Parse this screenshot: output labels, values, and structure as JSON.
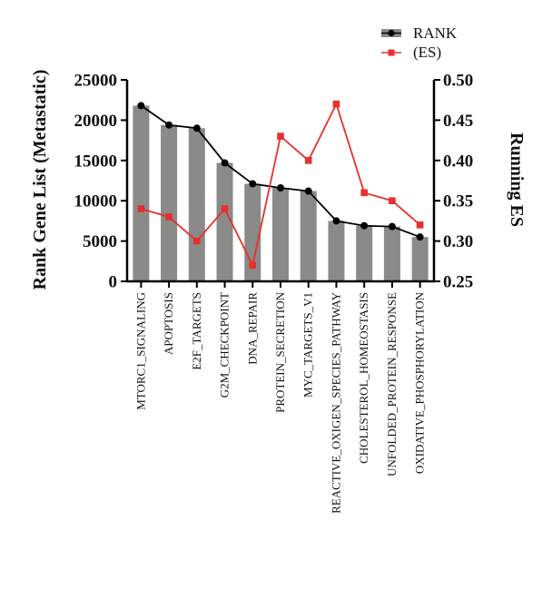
{
  "chart_data": {
    "type": "bar",
    "categories": [
      "MTORC1_SIGNALING",
      "APOPTOSIS",
      "E2F_TARGETS",
      "G2M_CHECKPOINT",
      "DNA_REPAIR",
      "PROTEIN_SECRETION",
      "MYC_TARGETS_V1",
      "REACTIVE_OXIGEN_SPECIES_PATHWAY",
      "CHOLESTEROL_HOMEOSTASIS",
      "UNFOLDED_PROTEIN_RESPONSE",
      "OXIDATIVE_PHOSPHORYLATION"
    ],
    "series": [
      {
        "name": "RANK",
        "type": "bar+line",
        "axis": "left",
        "values": [
          21800,
          19400,
          19000,
          14700,
          12100,
          11600,
          11200,
          7500,
          6900,
          6800,
          5500
        ],
        "bar_color": "#8a8a88",
        "line_color": "#000000"
      },
      {
        "name": "(ES)",
        "type": "line",
        "axis": "right",
        "values": [
          0.34,
          0.33,
          0.3,
          0.34,
          0.27,
          0.43,
          0.4,
          0.47,
          0.36,
          0.35,
          0.32
        ],
        "line_color": "#e8302a"
      }
    ],
    "ylabel": "Rank Gene List (Metastatic)",
    "y2label": "Running ES",
    "ylim": [
      0,
      25000
    ],
    "y2lim": [
      0.25,
      0.5
    ],
    "yticks": [
      "0",
      "5000",
      "10000",
      "15000",
      "20000",
      "25000"
    ],
    "y2ticks": [
      "0.25",
      "0.30",
      "0.35",
      "0.40",
      "0.45",
      "0.50"
    ],
    "legend_position": "top-right",
    "grid": false
  }
}
